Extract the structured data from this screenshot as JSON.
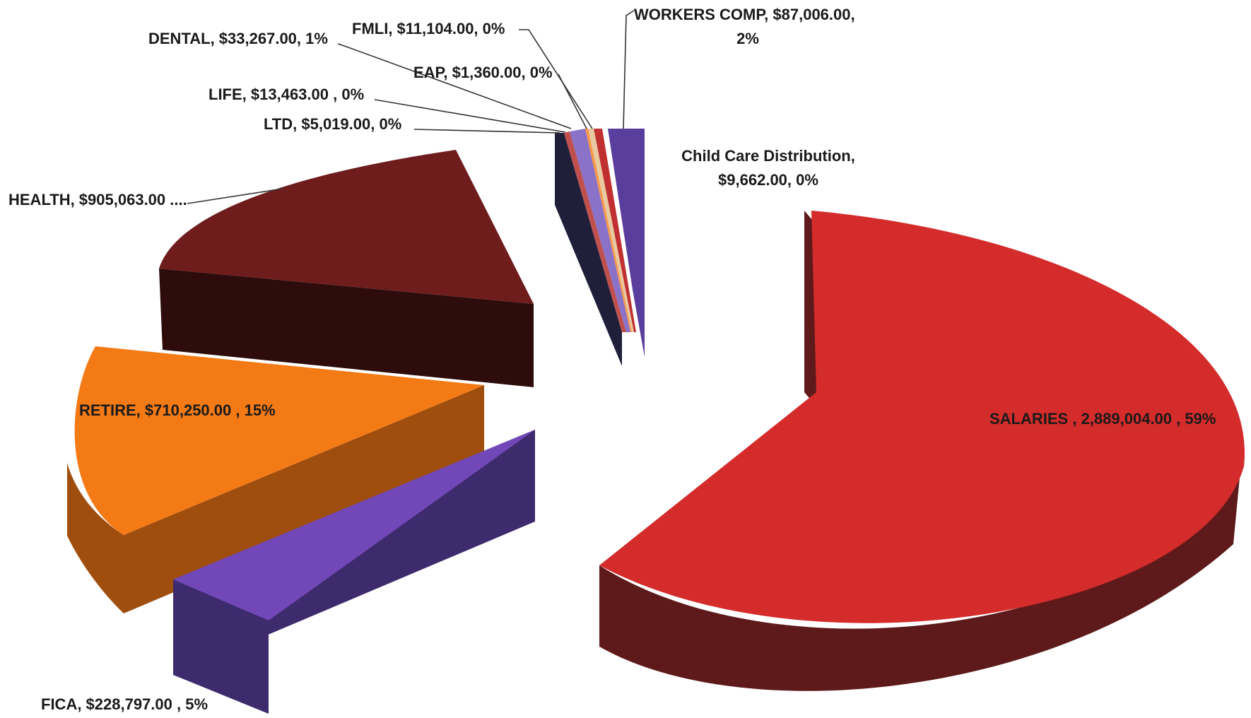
{
  "chart_data": {
    "type": "pie",
    "style": "3d-exploded",
    "title": "",
    "slices": [
      {
        "label": "SALARIES",
        "value": 2889004.0,
        "percent": 59,
        "color": "#d42b2b",
        "side_color": "#5e1a1a",
        "label_text": "SALARIES , 2,889,004.00 , 59%"
      },
      {
        "label": "FICA",
        "value": 228797.0,
        "percent": 5,
        "color": "#7248b8",
        "side_color": "#3e2b6e",
        "label_text": "FICA, $228,797.00 , 5%"
      },
      {
        "label": "RETIRE",
        "value": 710250.0,
        "percent": 15,
        "color": "#f47a16",
        "side_color": "#a04e0d",
        "label_text": "RETIRE, $710,250.00 , 15%"
      },
      {
        "label": "HEALTH",
        "value": 905063.0,
        "percent": null,
        "color": "#6e1c1c",
        "side_color": "#2e0c0c",
        "label_text": "HEALTH, $905,063.00 ...."
      },
      {
        "label": "LTD",
        "value": 5019.0,
        "percent": 0,
        "color": "#1f1f3a",
        "side_color": "#0d0d1e",
        "label_text": "LTD, $5,019.00, 0%"
      },
      {
        "label": "LIFE",
        "value": 13463.0,
        "percent": 0,
        "color": "#c0504d",
        "side_color": "#6e2a28",
        "label_text": "LIFE, $13,463.00 , 0%"
      },
      {
        "label": "DENTAL",
        "value": 33267.0,
        "percent": 1,
        "color": "#8a72c8",
        "side_color": "#4c3d78",
        "label_text": "DENTAL, $33,267.00, 1%"
      },
      {
        "label": "EAP",
        "value": 1360.0,
        "percent": 0,
        "color": "#f79646",
        "side_color": "#a0602a",
        "label_text": "EAP, $1,360.00, 0%"
      },
      {
        "label": "FMLI",
        "value": 11104.0,
        "percent": 0,
        "color": "#e8c9a0",
        "side_color": "#9a8060",
        "label_text": "FMLI, $11,104.00, 0%"
      },
      {
        "label": "WORKERS COMP",
        "value": 87006.0,
        "percent": 2,
        "color": "#5a3e9e",
        "side_color": "#2e2058",
        "label_text_lines": [
          "WORKERS COMP, $87,006.00,",
          "2%"
        ]
      },
      {
        "label": "Child Care Distribution",
        "value": 9662.0,
        "percent": 0,
        "color": "#c03030",
        "side_color": "#601818",
        "label_text_lines": [
          "Child Care Distribution,",
          "$9,662.00, 0%"
        ]
      }
    ]
  }
}
